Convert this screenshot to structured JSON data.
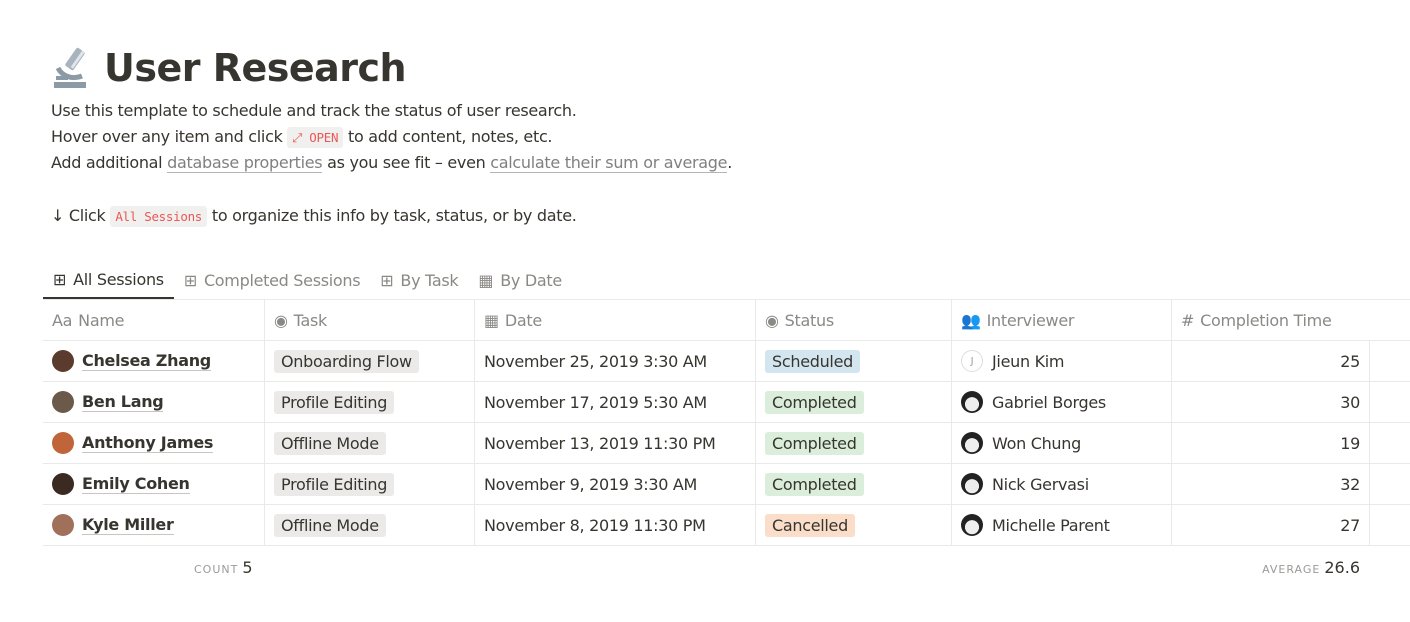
{
  "page": {
    "icon": "microscope-icon",
    "title": "User Research"
  },
  "description": {
    "line1": "Use this template to schedule and track the status of user research.",
    "line2_pre": "Hover over any item and click",
    "line2_code": "⤢ OPEN",
    "line2_post": "to add content, notes, etc.",
    "line3_pre": "Add additional",
    "line3_link1": "database properties",
    "line3_mid": "as you see fit – even",
    "line3_link2": "calculate their sum or average",
    "line3_post": ".",
    "line4_pre": "↓ Click",
    "line4_code": "All Sessions",
    "line4_post": "to organize this info by task, status, or by date."
  },
  "tabs": [
    {
      "label": "All Sessions",
      "icon": "table-icon",
      "active": true
    },
    {
      "label": "Completed Sessions",
      "icon": "table-icon"
    },
    {
      "label": "By Task",
      "icon": "table-icon"
    },
    {
      "label": "By Date",
      "icon": "calendar-icon"
    }
  ],
  "columns": [
    {
      "label": "Name",
      "icon": "Aa"
    },
    {
      "label": "Task",
      "icon": "select-icon"
    },
    {
      "label": "Date",
      "icon": "calendar-icon"
    },
    {
      "label": "Status",
      "icon": "select-icon"
    },
    {
      "label": "Interviewer",
      "icon": "people-icon"
    },
    {
      "label": "Completion Time",
      "icon": "#"
    }
  ],
  "rows": [
    {
      "name": "Chelsea Zhang",
      "task": "Onboarding Flow",
      "date": "November 25, 2019 3:30 AM",
      "status": "Scheduled",
      "interviewer": "Jieun Kim",
      "time": "25"
    },
    {
      "name": "Ben Lang",
      "task": "Profile Editing",
      "date": "November 17, 2019 5:30 AM",
      "status": "Completed",
      "interviewer": "Gabriel Borges",
      "time": "30"
    },
    {
      "name": "Anthony James",
      "task": "Offline Mode",
      "date": "November 13, 2019 11:30 PM",
      "status": "Completed",
      "interviewer": "Won Chung",
      "time": "19"
    },
    {
      "name": "Emily Cohen",
      "task": "Profile Editing",
      "date": "November 9, 2019 3:30 AM",
      "status": "Completed",
      "interviewer": "Nick Gervasi",
      "time": "32"
    },
    {
      "name": "Kyle Miller",
      "task": "Offline Mode",
      "date": "November 8, 2019 11:30 PM",
      "status": "Cancelled",
      "interviewer": "Michelle Parent",
      "time": "27"
    }
  ],
  "status_colors": {
    "Scheduled": "#d3e5ef",
    "Completed": "#dbeddb",
    "Cancelled": "#fadec9"
  },
  "footer": {
    "count_label": "COUNT",
    "count": "5",
    "average_label": "AVERAGE",
    "average": "26.6"
  },
  "jieun_initial": "J"
}
